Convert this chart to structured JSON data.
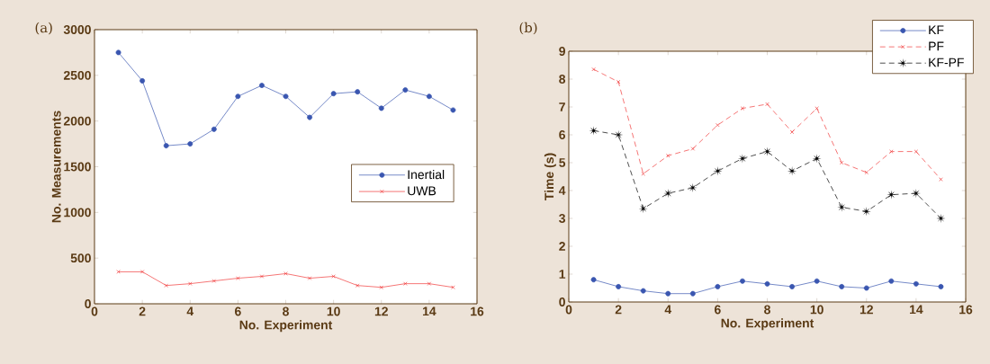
{
  "chart_data": [
    {
      "type": "line",
      "title": "(a)",
      "xlabel": "No. Experiment",
      "ylabel": "No. Measurements",
      "x": [
        1,
        2,
        3,
        4,
        5,
        6,
        7,
        8,
        9,
        10,
        11,
        12,
        13,
        14,
        15
      ],
      "xlim": [
        0,
        16
      ],
      "xticks": [
        0,
        2,
        4,
        6,
        8,
        10,
        12,
        14,
        16
      ],
      "ylim": [
        0,
        3000
      ],
      "yticks": [
        0,
        500,
        1000,
        1500,
        2000,
        2500,
        3000
      ],
      "legend": "right",
      "grid": false,
      "series": [
        {
          "name": "Inertial",
          "color": "#3a56b0",
          "marker": "circle",
          "line_style": "solid",
          "values": [
            2750,
            2440,
            1730,
            1750,
            1910,
            2270,
            2390,
            2270,
            2040,
            2300,
            2320,
            2140,
            2340,
            2270,
            2120
          ]
        },
        {
          "name": "UWB",
          "color": "#f03a3a",
          "marker": "cross",
          "line_style": "solid",
          "values": [
            350,
            350,
            200,
            220,
            250,
            280,
            300,
            330,
            280,
            300,
            200,
            180,
            220,
            220,
            180
          ]
        }
      ]
    },
    {
      "type": "line",
      "title": "(b)",
      "xlabel": "No. Experiment",
      "ylabel": "Time (s)",
      "x": [
        1,
        2,
        3,
        4,
        5,
        6,
        7,
        8,
        9,
        10,
        11,
        12,
        13,
        14,
        15
      ],
      "xlim": [
        0,
        16
      ],
      "xticks": [
        0,
        2,
        4,
        6,
        8,
        10,
        12,
        14,
        16
      ],
      "ylim": [
        0,
        9
      ],
      "yticks": [
        0,
        1,
        2,
        3,
        4,
        5,
        6,
        7,
        8,
        9
      ],
      "legend": "top right",
      "grid": false,
      "series": [
        {
          "name": "KF",
          "color": "#3a56b0",
          "marker": "circle",
          "line_style": "solid",
          "values": [
            0.8,
            0.55,
            0.4,
            0.3,
            0.3,
            0.55,
            0.75,
            0.65,
            0.55,
            0.75,
            0.55,
            0.5,
            0.75,
            0.65,
            0.55
          ]
        },
        {
          "name": "PF",
          "color": "#f03a3a",
          "marker": "cross",
          "line_style": "dashed",
          "values": [
            8.35,
            7.9,
            4.6,
            5.25,
            5.5,
            6.35,
            6.95,
            7.1,
            6.1,
            6.95,
            5.0,
            4.65,
            5.4,
            5.4,
            4.4
          ]
        },
        {
          "name": "KF-PF",
          "color": "#000000",
          "marker": "star",
          "line_style": "dashed",
          "values": [
            6.15,
            6.0,
            3.35,
            3.9,
            4.1,
            4.7,
            5.15,
            5.4,
            4.7,
            5.15,
            3.4,
            3.25,
            3.85,
            3.9,
            3.0
          ]
        }
      ]
    }
  ]
}
